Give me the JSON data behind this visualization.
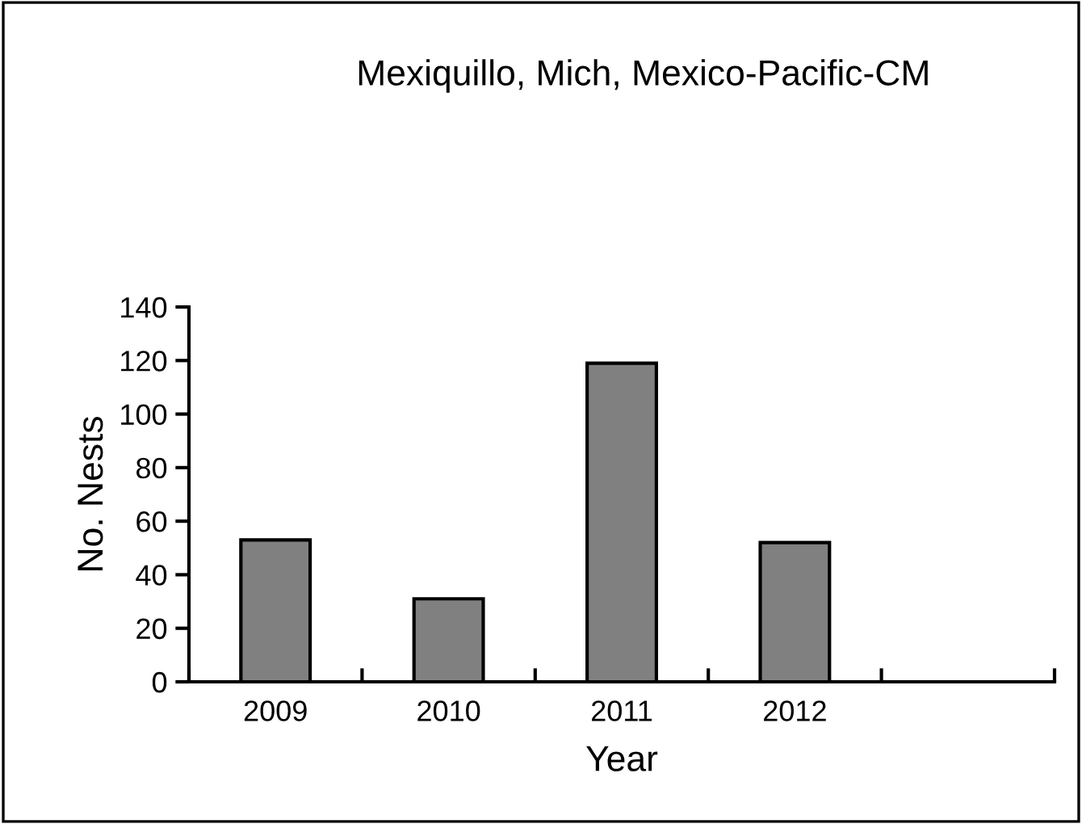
{
  "chart_data": {
    "type": "bar",
    "title": "Mexiquillo, Mich, Mexico-Pacific-CM",
    "xlabel": "Year",
    "ylabel": "No. Nests",
    "categories": [
      "2009",
      "2010",
      "2011",
      "2012",
      null
    ],
    "values": [
      53,
      31,
      119,
      52,
      null
    ],
    "color": "#808080",
    "ylim": [
      0,
      140
    ],
    "yticks": [
      0,
      20,
      40,
      60,
      80,
      100,
      120,
      140
    ],
    "grid": false,
    "legend": false
  }
}
